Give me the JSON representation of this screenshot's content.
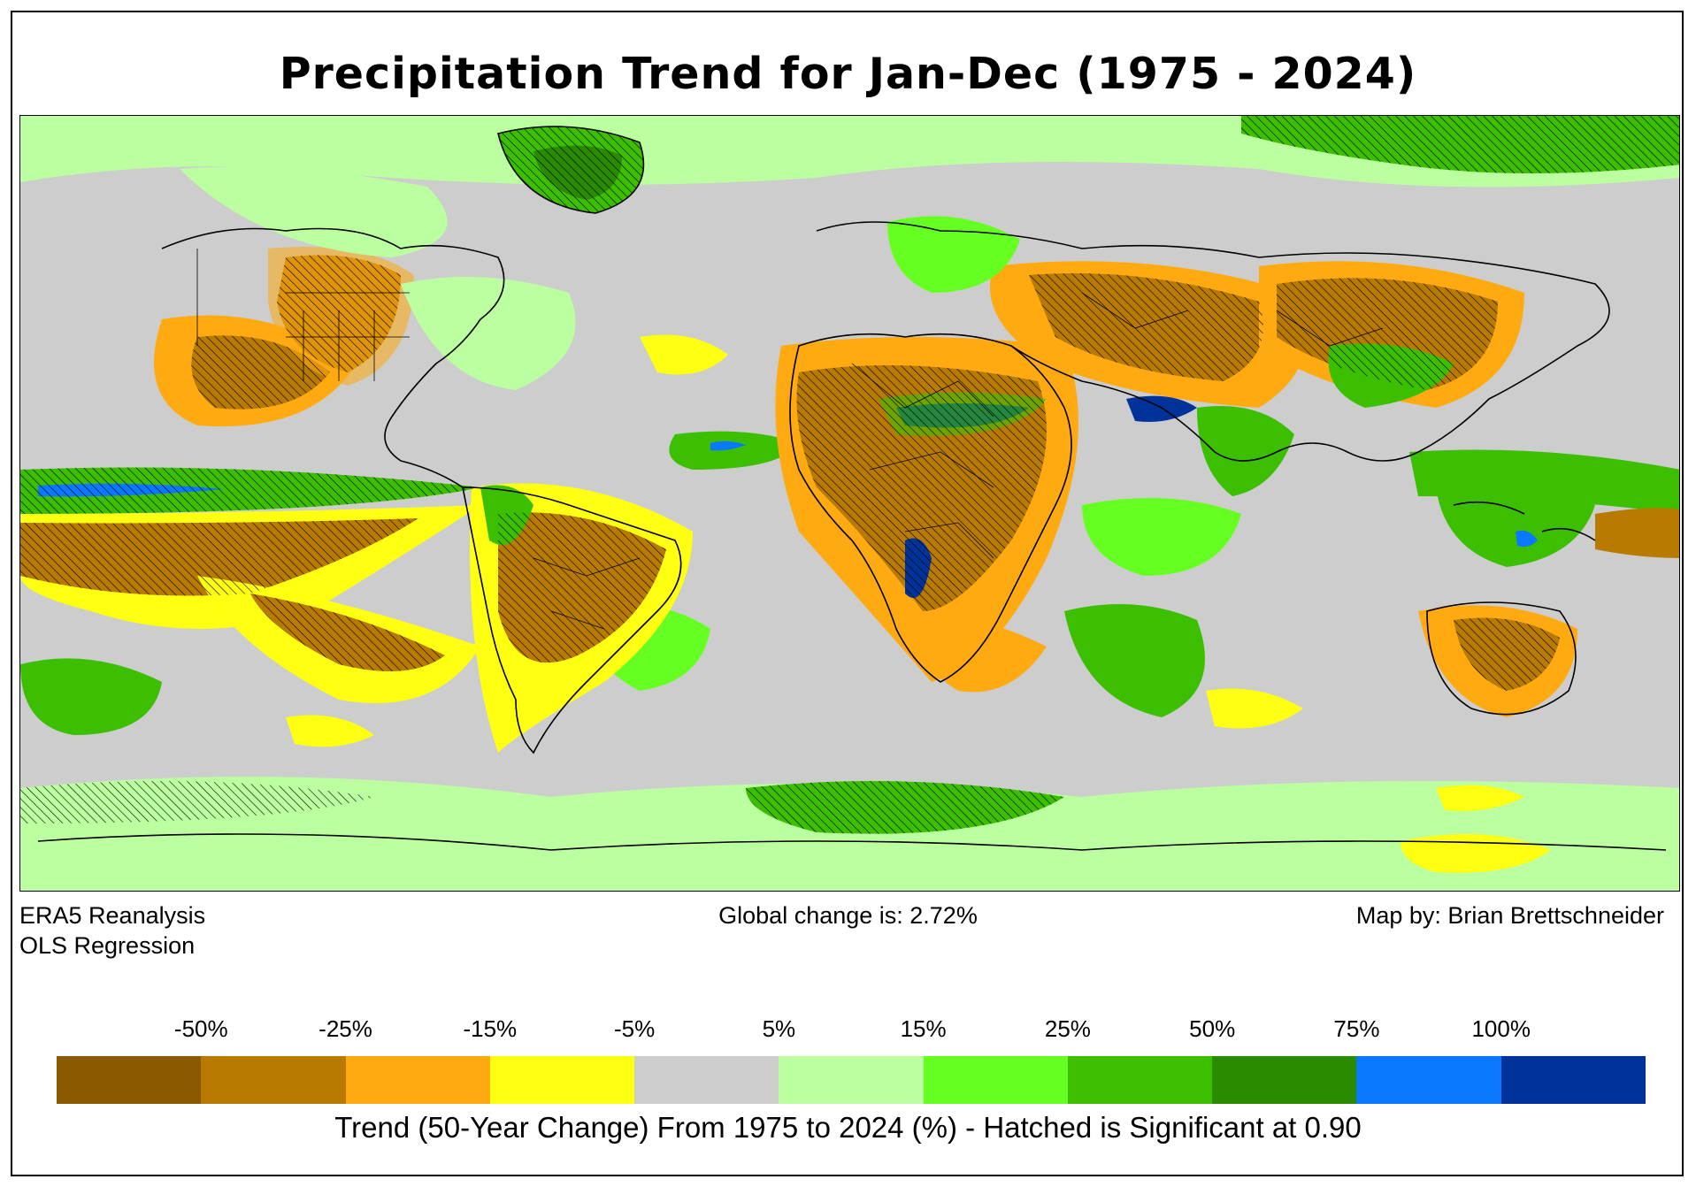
{
  "title": "Precipitation Trend for Jan-Dec (1975 - 2024)",
  "notes": {
    "dataset": "ERA5 Reanalysis",
    "method": "OLS Regression",
    "global_change": "Global change is: 2.72%",
    "credit": "Map by: Brian Brettschneider"
  },
  "colorbar": {
    "label": "Trend (50-Year Change) From 1975 to 2024 (%) - Hatched is Significant at 0.90",
    "tick_labels": [
      "-50%",
      "-25%",
      "-15%",
      "-5%",
      "5%",
      "15%",
      "25%",
      "50%",
      "75%",
      "100%"
    ],
    "colors": [
      "#8b5a00",
      "#b87a00",
      "#ffaa11",
      "#ffff11",
      "#cdcdcd",
      "#bbffa0",
      "#66ff22",
      "#3cbf00",
      "#2a8a00",
      "#0a78ff",
      "#003399"
    ]
  },
  "map": {
    "projection": "plate-carree",
    "hatch": "diagonal",
    "colors": {
      "strong_dry": "#8b5a00",
      "dry": "#b87a00",
      "moderate_dry": "#ffaa11",
      "slight_dry": "#ffff11",
      "neutral": "#cdcdcd",
      "slight_wet": "#bbffa0",
      "moderate_wet": "#66ff22",
      "wet": "#3cbf00",
      "very_wet": "#2a8a00",
      "extreme_wet": "#0a78ff",
      "max_wet": "#003399"
    }
  }
}
